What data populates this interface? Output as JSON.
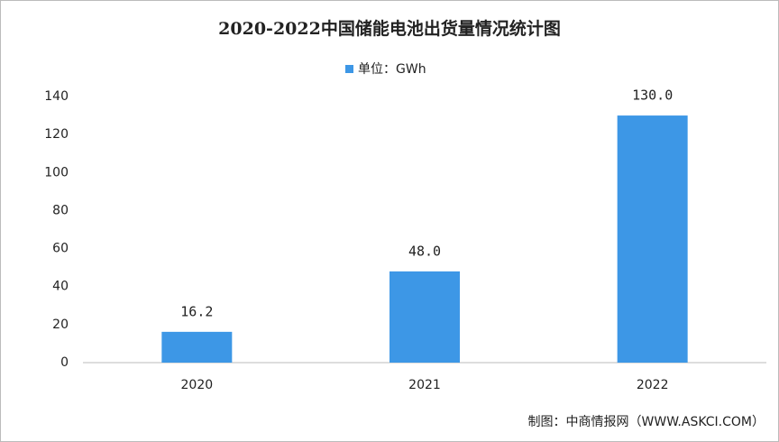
{
  "chart_data": {
    "type": "bar",
    "title": "2020-2022中国储能电池出货量情况统计图",
    "categories": [
      "2020",
      "2021",
      "2022"
    ],
    "series": [
      {
        "name": "单位：GWh",
        "color": "#3d97e6",
        "values": [
          16.2,
          48.0,
          130.0
        ],
        "value_labels": [
          "16.2",
          "48.0",
          "130.0"
        ]
      }
    ],
    "ylim": [
      0,
      140
    ],
    "yticks": [
      0,
      20,
      40,
      60,
      80,
      100,
      120,
      140
    ],
    "grid": false,
    "source": "制图：中商情报网（WWW.ASKCI.COM）"
  }
}
